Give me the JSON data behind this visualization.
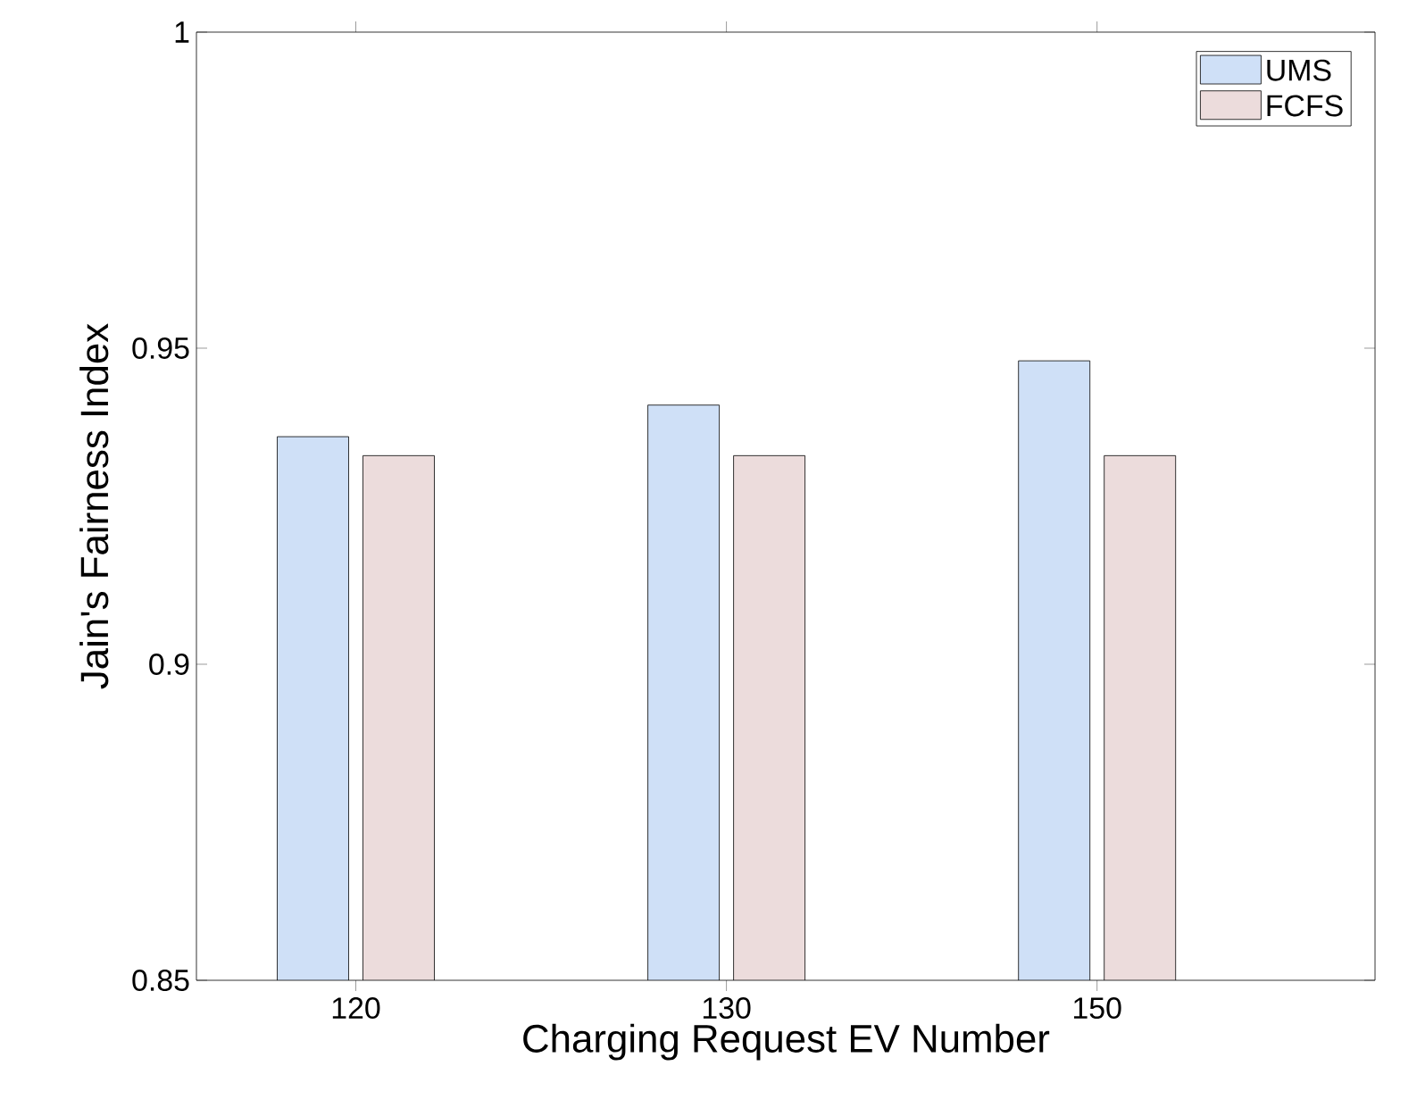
{
  "chart_data": {
    "type": "bar",
    "xlabel": "Charging Request EV Number",
    "ylabel": "Jain's Fairness Index",
    "categories": [
      "120",
      "130",
      "150"
    ],
    "series": [
      {
        "name": "UMS",
        "color": "#cfe0f7",
        "values": [
          0.936,
          0.941,
          0.948
        ]
      },
      {
        "name": "FCFS",
        "color": "#ecdcdc",
        "values": [
          0.933,
          0.933,
          0.933
        ]
      }
    ],
    "ylim": [
      0.85,
      1
    ],
    "yticks": [
      0.85,
      0.9,
      0.95,
      1
    ],
    "grid": false,
    "legend": "top right"
  }
}
